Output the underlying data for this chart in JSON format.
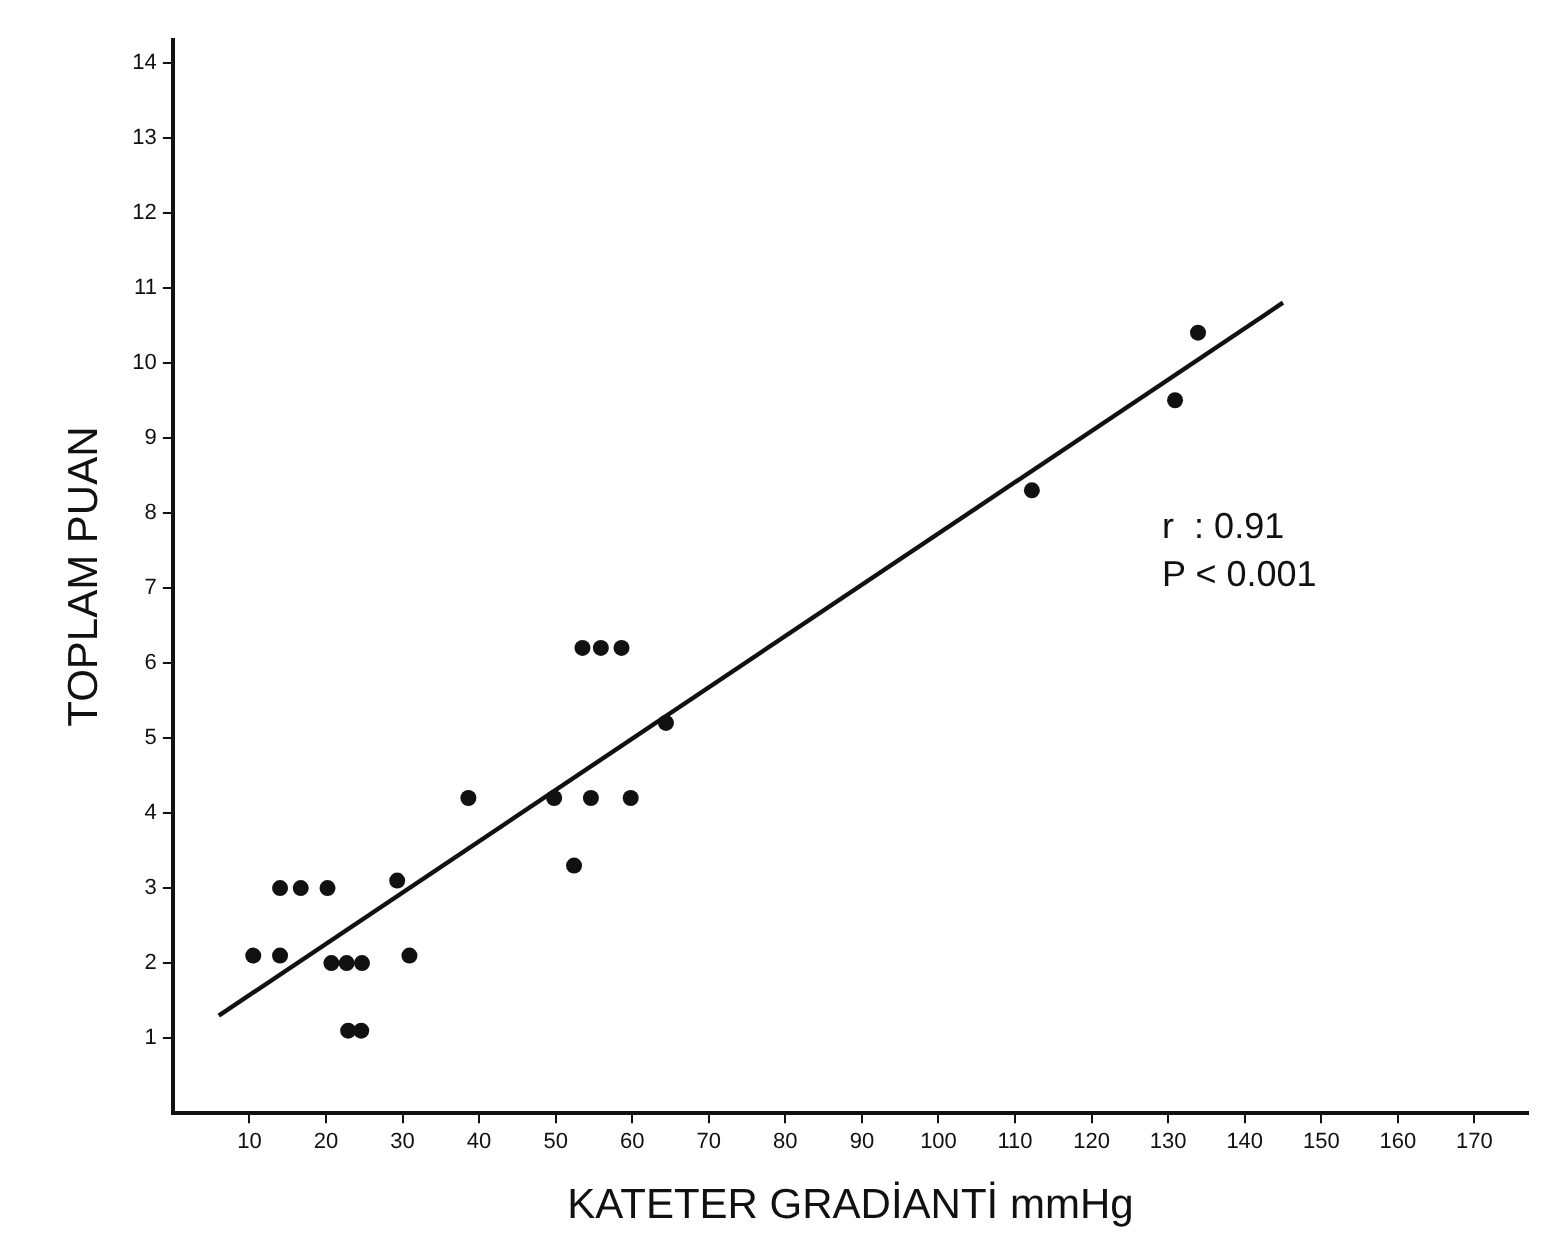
{
  "chart_data": {
    "type": "scatter",
    "xlabel": "KATETER GRADİANTİ mmHg",
    "ylabel": "TOPLAM PUAN",
    "xlim": [
      0,
      177
    ],
    "xticks": [
      10,
      20,
      30,
      40,
      50,
      60,
      70,
      80,
      90,
      100,
      110,
      120,
      130,
      140,
      150,
      160,
      170
    ],
    "ylim": [
      0,
      14.3
    ],
    "yticks": [
      1,
      2,
      3,
      4,
      5,
      6,
      7,
      8,
      9,
      10,
      11,
      12,
      13,
      14
    ],
    "grid": false,
    "legend": false,
    "marker": "circle",
    "series": [
      {
        "type": "scatter",
        "color": "#111111",
        "x": [
          10.5,
          14,
          14,
          16.7,
          20.2,
          20.7,
          22.7,
          24.7,
          22.9,
          24.6,
          29.3,
          30.9,
          38.6,
          49.8,
          52.4,
          54.6,
          59.8,
          53.5,
          55.9,
          58.6,
          64.4,
          112.2,
          130.9,
          133.9
        ],
        "values": [
          2.1,
          3.0,
          2.1,
          3.0,
          3.0,
          2.0,
          2.0,
          2.0,
          1.1,
          1.1,
          3.1,
          2.1,
          4.2,
          4.2,
          3.3,
          4.2,
          4.2,
          6.2,
          6.2,
          6.2,
          5.2,
          8.3,
          9.5,
          10.4
        ]
      },
      {
        "type": "line",
        "color": "#111111",
        "x": [
          6,
          145
        ],
        "values": [
          1.3,
          10.8
        ],
        "marker": "none",
        "line_style": "solid"
      }
    ],
    "annotations": [
      "r  : 0.91",
      "P < 0.001"
    ]
  }
}
